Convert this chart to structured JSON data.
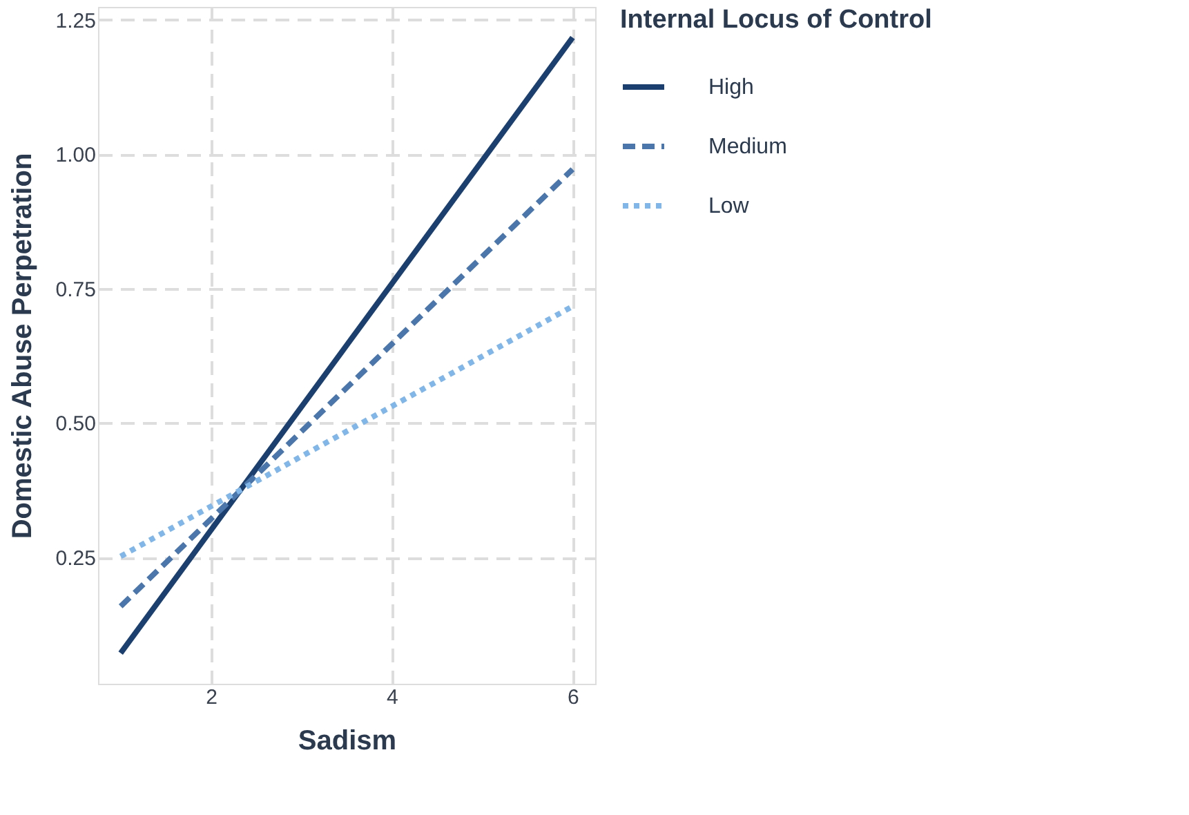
{
  "chart_data": {
    "type": "line",
    "xlabel": "Sadism",
    "ylabel": "Domestic Abuse Perpetration",
    "legend_title": "Internal Locus of Control",
    "x": [
      1,
      6
    ],
    "series": [
      {
        "name": "High",
        "color": "#1b3f6e",
        "line_style": "solid",
        "values": [
          0.072,
          1.217
        ]
      },
      {
        "name": "Medium",
        "color": "#4a76ab",
        "line_style": "dashed",
        "values": [
          0.159,
          0.972
        ]
      },
      {
        "name": "Low",
        "color": "#80b6e8",
        "line_style": "dotted",
        "values": [
          0.252,
          0.717
        ]
      }
    ],
    "xlim": [
      0.75,
      6.25
    ],
    "ylim": [
      0.015,
      1.274
    ],
    "xticks": [
      2,
      4,
      6
    ],
    "yticks": [
      {
        "value": 0.25,
        "label": "0.25"
      },
      {
        "value": 0.5,
        "label": "0.50"
      },
      {
        "value": 0.75,
        "label": "0.75"
      },
      {
        "value": 1.0,
        "label": "1.00"
      },
      {
        "value": 1.25,
        "label": "1.25"
      }
    ],
    "grid": true,
    "legend": "right",
    "marker": "none"
  }
}
